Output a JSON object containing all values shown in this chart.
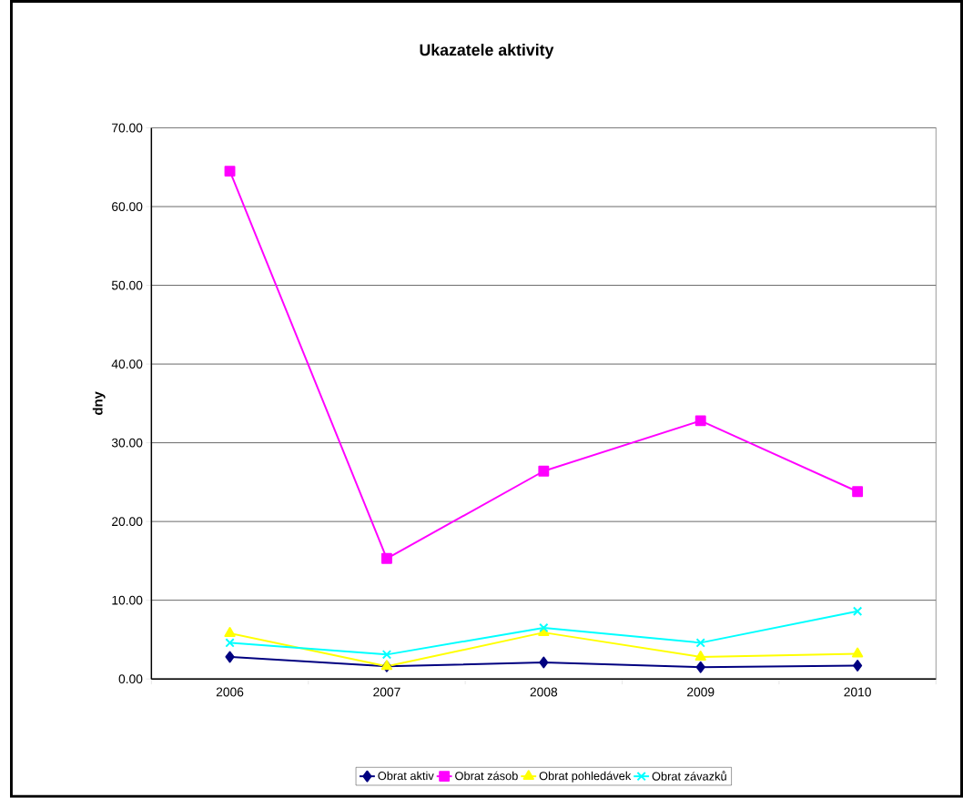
{
  "chart_data": {
    "type": "line",
    "title": "Ukazatele aktivity",
    "ylabel": "dny",
    "categories": [
      "2006",
      "2007",
      "2008",
      "2009",
      "2010"
    ],
    "series": [
      {
        "name": "Obrat aktiv",
        "color": "#000080",
        "marker": "diamond",
        "values": [
          2.8,
          1.6,
          2.1,
          1.5,
          1.7
        ]
      },
      {
        "name": "Obrat zásob",
        "color": "#ff00ff",
        "marker": "square",
        "values": [
          64.5,
          15.3,
          26.4,
          32.8,
          23.8
        ]
      },
      {
        "name": "Obrat pohledávek",
        "color": "#ffff00",
        "marker": "triangle",
        "values": [
          5.8,
          1.6,
          5.9,
          2.8,
          3.2
        ]
      },
      {
        "name": "Obrat závazků",
        "color": "#00ffff",
        "marker": "cross",
        "values": [
          4.6,
          3.1,
          6.5,
          4.6,
          8.6
        ]
      }
    ],
    "ylim": [
      0,
      70
    ],
    "yticks": [
      {
        "value": 0,
        "label": "0.00"
      },
      {
        "value": 10,
        "label": "10.00"
      },
      {
        "value": 20,
        "label": "20.00"
      },
      {
        "value": 30,
        "label": "30.00"
      },
      {
        "value": 40,
        "label": "40.00"
      },
      {
        "value": 50,
        "label": "50.00"
      },
      {
        "value": 60,
        "label": "60.00"
      },
      {
        "value": 70,
        "label": "70.00"
      }
    ],
    "grid": "y",
    "legend": "bottom",
    "line_style": "solid"
  }
}
